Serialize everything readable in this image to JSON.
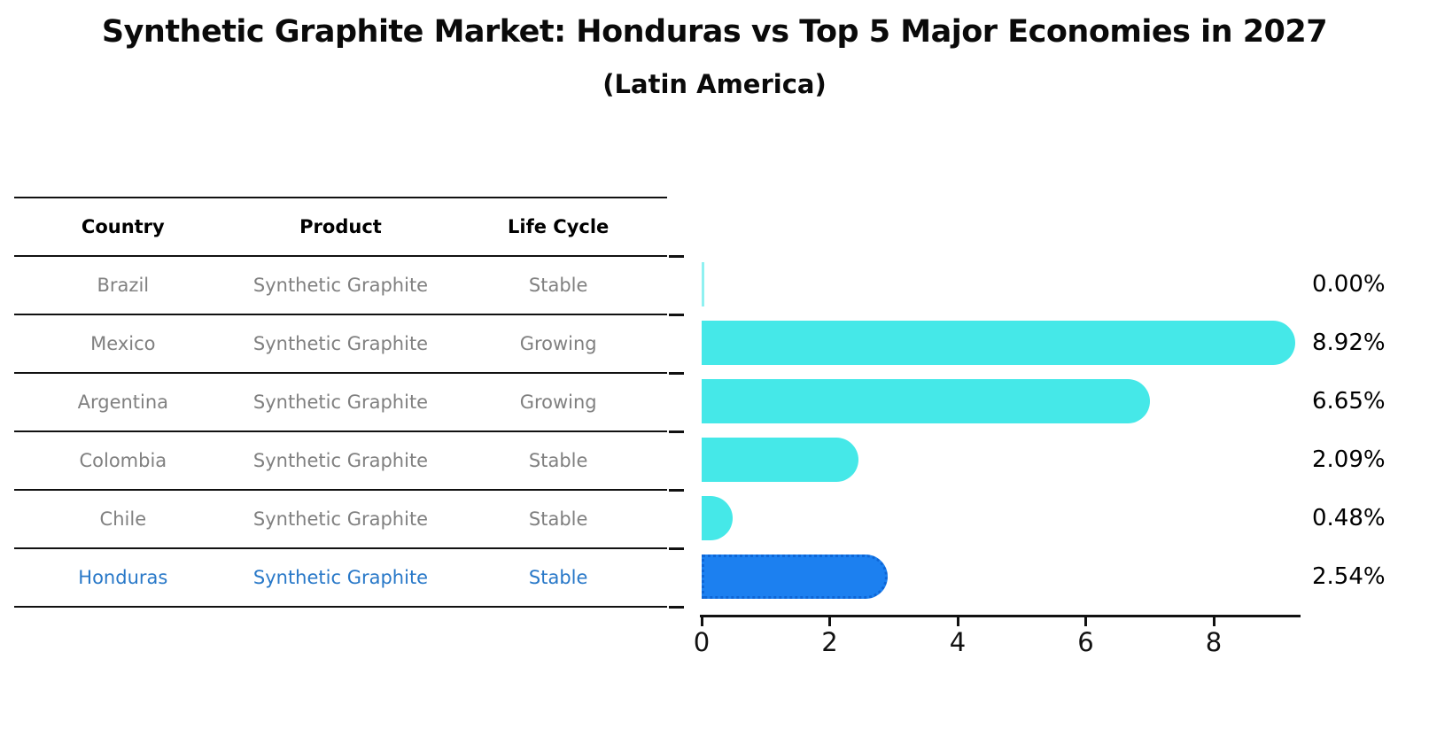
{
  "header": {
    "title": "Synthetic Graphite Market: Honduras vs Top 5 Major Economies in 2027",
    "subtitle": "(Latin America)"
  },
  "table": {
    "columns": [
      "Country",
      "Product",
      "Life Cycle"
    ],
    "rows": [
      {
        "country": "Brazil",
        "product": "Synthetic Graphite",
        "life_cycle": "Stable",
        "highlight": false
      },
      {
        "country": "Mexico",
        "product": "Synthetic Graphite",
        "life_cycle": "Growing",
        "highlight": false
      },
      {
        "country": "Argentina",
        "product": "Synthetic Graphite",
        "life_cycle": "Growing",
        "highlight": false
      },
      {
        "country": "Colombia",
        "product": "Synthetic Graphite",
        "life_cycle": "Stable",
        "highlight": false
      },
      {
        "country": "Chile",
        "product": "Synthetic Graphite",
        "life_cycle": "Stable",
        "highlight": false
      },
      {
        "country": "Honduras",
        "product": "Synthetic Graphite",
        "life_cycle": "Stable",
        "highlight": true
      }
    ]
  },
  "chart_data": {
    "type": "bar",
    "orientation": "horizontal",
    "title": "Synthetic Graphite Market: Honduras vs Top 5 Major Economies in 2027",
    "subtitle": "(Latin America)",
    "categories": [
      "Brazil",
      "Mexico",
      "Argentina",
      "Colombia",
      "Chile",
      "Honduras"
    ],
    "values": [
      0.0,
      8.92,
      6.65,
      2.09,
      0.48,
      2.54
    ],
    "value_labels": [
      "0.00%",
      "8.92%",
      "6.65%",
      "2.09%",
      "0.48%",
      "2.54%"
    ],
    "xlabel": "",
    "ylabel": "",
    "xlim": [
      0,
      9.36
    ],
    "xticks": [
      0,
      2,
      4,
      6,
      8
    ],
    "grid": false,
    "legend": null,
    "highlight_index": 5,
    "colors": {
      "bar": "#45E8E8",
      "highlight_bar": "#1C80F0",
      "highlight_border": "#0E66D6",
      "highlight_text": "#2878C8",
      "row_text": "#808080",
      "header_text": "#000000",
      "value_label": "#000000",
      "axis": "#000000"
    }
  }
}
